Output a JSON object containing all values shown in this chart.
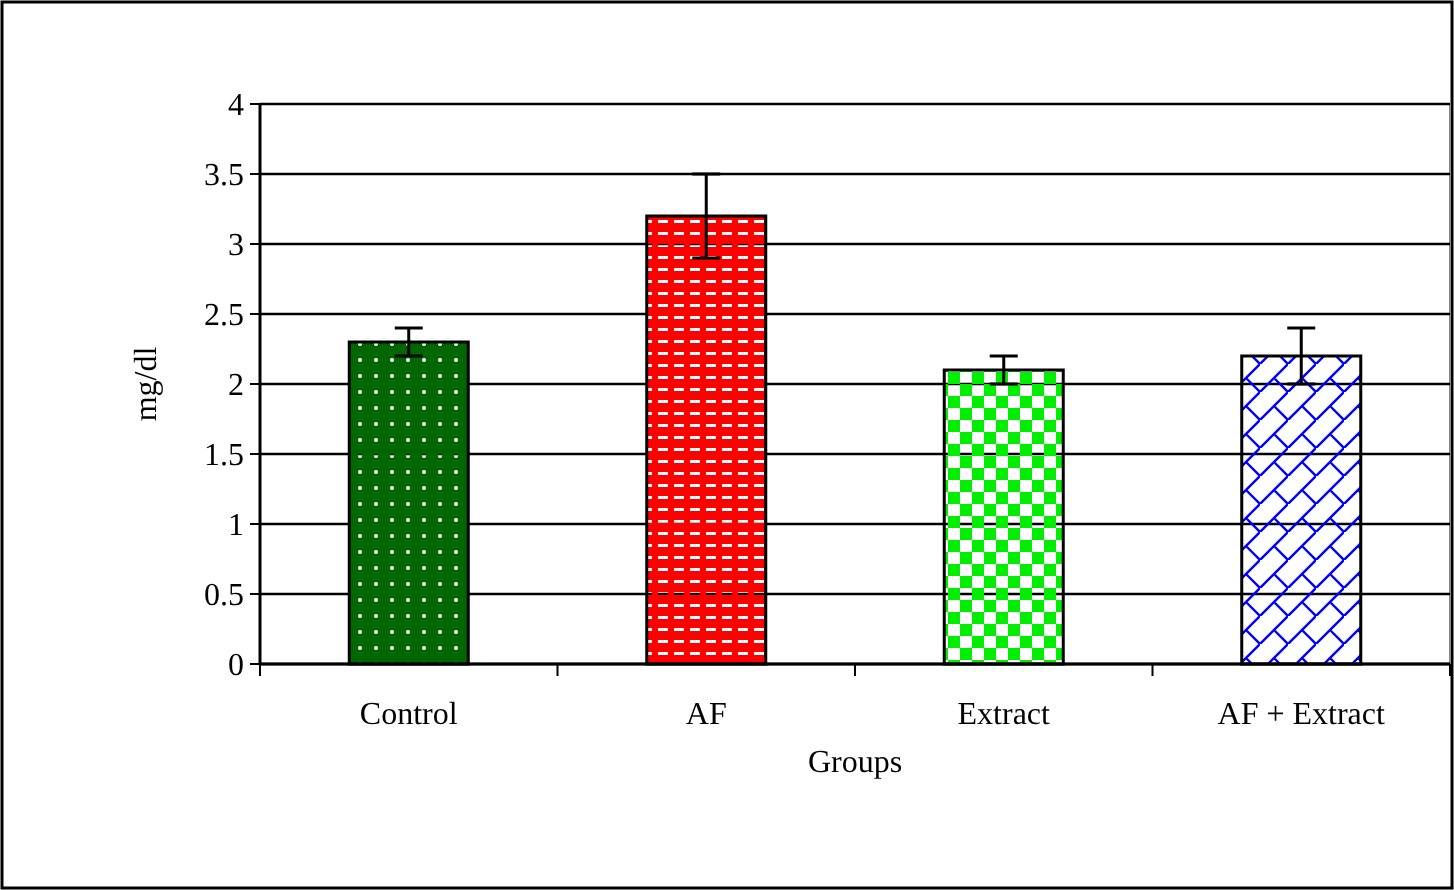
{
  "chart_data": {
    "type": "bar",
    "xlabel": "Groups",
    "ylabel": "mg/dl",
    "categories": [
      "Control",
      "AF",
      "Extract",
      "AF + Extract"
    ],
    "values": [
      2.3,
      3.2,
      2.1,
      2.2
    ],
    "errors": [
      0.1,
      0.3,
      0.1,
      0.2
    ],
    "colors": [
      "#006600",
      "#ff0000",
      "#00ee00",
      "#0000ff"
    ],
    "ylim": [
      0,
      4
    ],
    "yticks": [
      0,
      0.5,
      1,
      1.5,
      2,
      2.5,
      3,
      3.5,
      4
    ],
    "grid": "y"
  }
}
